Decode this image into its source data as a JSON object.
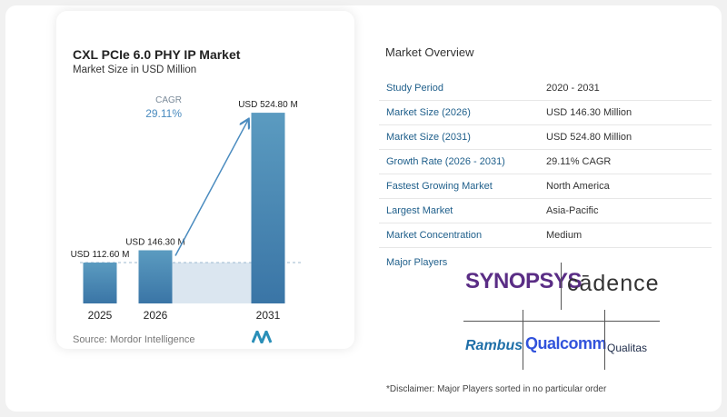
{
  "chart_data": {
    "type": "bar",
    "title": "CXL PCIe 6.0 PHY IP Market",
    "subtitle": "Market Size in USD Million",
    "categories": [
      "2025",
      "2026",
      "2031"
    ],
    "values": [
      112.6,
      146.3,
      524.8
    ],
    "data_labels": [
      "USD 112.60 M",
      "USD 146.30 M",
      "USD 524.80 M"
    ],
    "cagr_label": "CAGR",
    "cagr_value": "29.11%",
    "source": "Source:  Mordor Intelligence",
    "ylim": [
      0,
      560
    ],
    "grid": false,
    "colors": {
      "bar_start": "#5b9bc0",
      "bar_end": "#3a75a6",
      "shade": "#dbe6f0",
      "cagr": "#4a8bbf",
      "dash": "#9cb8cf"
    }
  },
  "overview": {
    "title": "Market Overview",
    "rows": [
      {
        "key": "Study Period",
        "value": "2020 - 2031"
      },
      {
        "key": "Market Size (2026)",
        "value": "USD 146.30 Million"
      },
      {
        "key": "Market Size (2031)",
        "value": "USD 524.80 Million"
      },
      {
        "key": "Growth Rate (2026 - 2031)",
        "value": "29.11% CAGR"
      },
      {
        "key": "Fastest Growing Market",
        "value": "North America"
      },
      {
        "key": "Largest Market",
        "value": "Asia-Pacific"
      },
      {
        "key": "Market Concentration",
        "value": "Medium"
      }
    ]
  },
  "players": {
    "label": "Major Players",
    "logos": {
      "synopsys": "SYNOPSYS",
      "cadence": "cādence",
      "rambus": "Rambus",
      "qualcomm": "Qualcomm",
      "qualitas": "Qualitas"
    }
  },
  "disclaimer": "*Disclaimer: Major Players sorted in no particular order",
  "icons": {
    "brand_logo": "mordor-intelligence-logo-icon"
  }
}
